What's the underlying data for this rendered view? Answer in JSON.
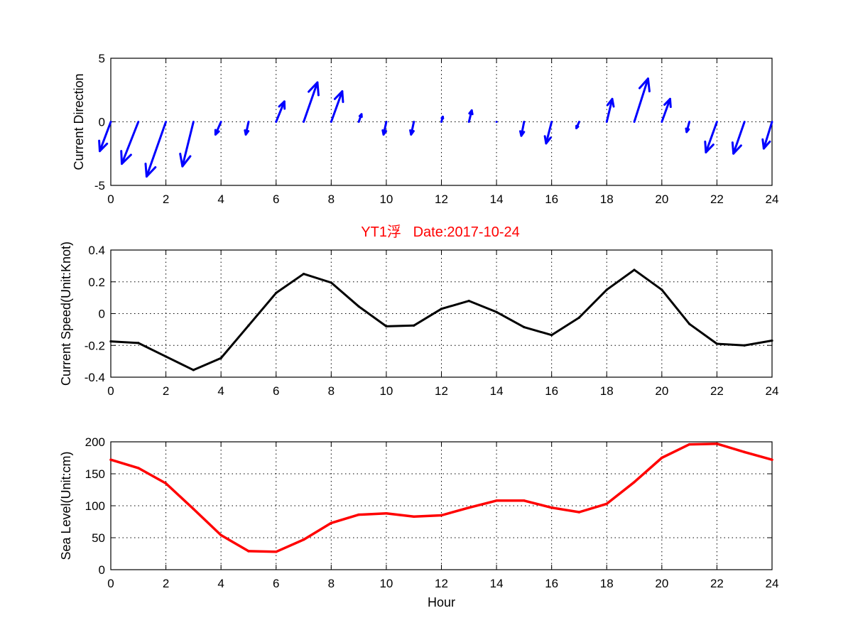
{
  "colors": {
    "arrows": "#0000ff",
    "speed_line": "#000000",
    "sea_level_line": "#ff0000",
    "title": "#ff0000"
  },
  "figure_title": "YT1浮   Date:2017-10-24",
  "chart_data": [
    {
      "type": "quiver",
      "ylabel": "Current Direction",
      "xlabel": "",
      "xlim": [
        0,
        24
      ],
      "ylim": [
        -5,
        5
      ],
      "xticks": [
        0,
        2,
        4,
        6,
        8,
        10,
        12,
        14,
        16,
        18,
        20,
        22,
        24
      ],
      "yticks": [
        -5,
        0,
        5
      ],
      "grid": true,
      "x": [
        0,
        1,
        2,
        3,
        4,
        5,
        6,
        7,
        8,
        9,
        10,
        11,
        12,
        13,
        14,
        15,
        16,
        17,
        18,
        19,
        20,
        21,
        22,
        23,
        24
      ],
      "u": [
        -0.4,
        -0.6,
        -0.7,
        -0.4,
        -0.2,
        -0.1,
        0.3,
        0.5,
        0.4,
        0.1,
        -0.1,
        -0.1,
        0.05,
        0.1,
        0.02,
        -0.1,
        -0.2,
        -0.1,
        0.2,
        0.5,
        0.3,
        -0.1,
        -0.4,
        -0.4,
        -0.3
      ],
      "v": [
        -2.3,
        -3.3,
        -4.3,
        -3.5,
        -1.0,
        -1.0,
        1.6,
        3.1,
        2.4,
        0.6,
        -1.0,
        -1.0,
        0.4,
        0.9,
        0.1,
        -1.1,
        -1.7,
        -0.5,
        1.8,
        3.4,
        1.8,
        -0.8,
        -2.4,
        -2.5,
        -2.1
      ]
    },
    {
      "type": "line",
      "ylabel": "Current Speed(Unit:Knot)",
      "xlabel": "",
      "xlim": [
        0,
        24
      ],
      "ylim": [
        -0.4,
        0.4
      ],
      "xticks": [
        0,
        2,
        4,
        6,
        8,
        10,
        12,
        14,
        16,
        18,
        20,
        22,
        24
      ],
      "yticks": [
        -0.4,
        -0.2,
        0,
        0.2,
        0.4
      ],
      "grid": true,
      "x": [
        0,
        1,
        2,
        3,
        4,
        5,
        6,
        7,
        8,
        9,
        10,
        11,
        12,
        13,
        14,
        15,
        16,
        17,
        18,
        19,
        20,
        21,
        22,
        23,
        24
      ],
      "values": [
        -0.175,
        -0.185,
        -0.27,
        -0.355,
        -0.28,
        -0.075,
        0.13,
        0.25,
        0.195,
        0.045,
        -0.08,
        -0.075,
        0.03,
        0.08,
        0.01,
        -0.085,
        -0.135,
        -0.025,
        0.15,
        0.275,
        0.15,
        -0.065,
        -0.19,
        -0.2,
        -0.17
      ]
    },
    {
      "type": "line",
      "ylabel": "Sea Level(Unit:cm)",
      "xlabel": "Hour",
      "xlim": [
        0,
        24
      ],
      "ylim": [
        0,
        200
      ],
      "xticks": [
        0,
        2,
        4,
        6,
        8,
        10,
        12,
        14,
        16,
        18,
        20,
        22,
        24
      ],
      "yticks": [
        0,
        50,
        100,
        150,
        200
      ],
      "grid": true,
      "x": [
        0,
        1,
        2,
        3,
        4,
        5,
        6,
        7,
        8,
        9,
        10,
        11,
        12,
        13,
        14,
        15,
        16,
        17,
        18,
        19,
        20,
        21,
        22,
        23,
        24
      ],
      "values": [
        172,
        159,
        135,
        95,
        54,
        29,
        28,
        47,
        73,
        86,
        88,
        83,
        85,
        97,
        108,
        108,
        97,
        90,
        103,
        137,
        175,
        196,
        197,
        184,
        172
      ]
    }
  ]
}
